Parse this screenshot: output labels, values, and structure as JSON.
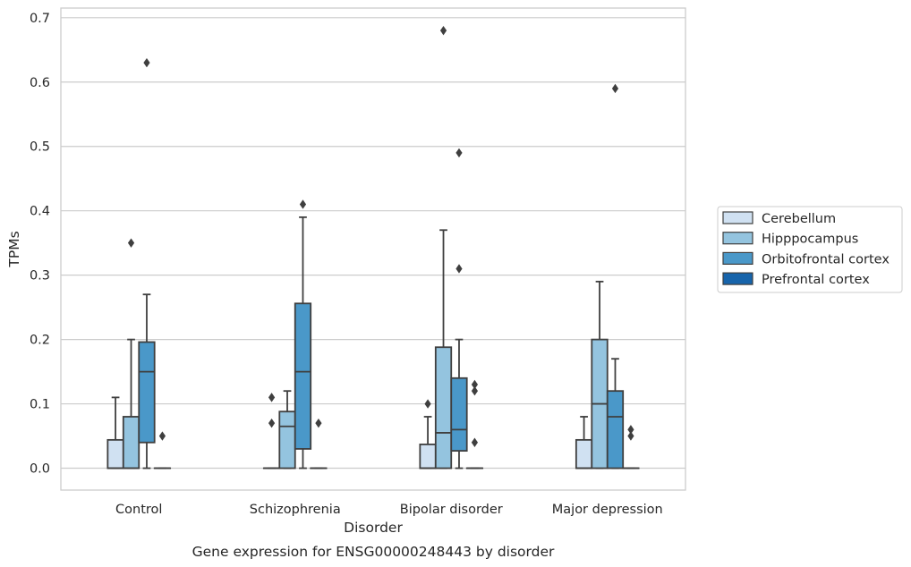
{
  "chart_data": {
    "type": "box",
    "xlabel": "Disorder",
    "ylabel": "TPMs",
    "caption": "Gene expression for ENSG00000248443 by disorder",
    "ylim": [
      -0.034,
      0.715
    ],
    "yticks": [
      0.0,
      0.1,
      0.2,
      0.3,
      0.4,
      0.5,
      0.6,
      0.7
    ],
    "ytick_labels": [
      "0.0",
      "0.1",
      "0.2",
      "0.3",
      "0.4",
      "0.5",
      "0.6",
      "0.7"
    ],
    "grid": "horizontal",
    "legend_position": "right",
    "categories": [
      "Control",
      "Schizophrenia",
      "Bipolar disorder",
      "Major depression"
    ],
    "series": [
      {
        "name": "Cerebellum",
        "color": "#d0e1f2",
        "boxes": [
          {
            "category": "Control",
            "whisker_low": 0.0,
            "q1": 0.0,
            "median": 0.0,
            "q3": 0.044,
            "whisker_high": 0.11,
            "outliers": []
          },
          {
            "category": "Schizophrenia",
            "whisker_low": 0.0,
            "q1": 0.0,
            "median": 0.0,
            "q3": 0.0,
            "whisker_high": 0.0,
            "outliers": [
              0.11,
              0.07
            ]
          },
          {
            "category": "Bipolar disorder",
            "whisker_low": 0.0,
            "q1": 0.0,
            "median": 0.0,
            "q3": 0.037,
            "whisker_high": 0.08,
            "outliers": [
              0.1
            ]
          },
          {
            "category": "Major depression",
            "whisker_low": 0.0,
            "q1": 0.0,
            "median": 0.0,
            "q3": 0.044,
            "whisker_high": 0.08,
            "outliers": []
          }
        ]
      },
      {
        "name": "Hipppocampus",
        "color": "#94c4df",
        "boxes": [
          {
            "category": "Control",
            "whisker_low": 0.0,
            "q1": 0.0,
            "median": 0.0,
            "q3": 0.08,
            "whisker_high": 0.2,
            "outliers": [
              0.35
            ]
          },
          {
            "category": "Schizophrenia",
            "whisker_low": 0.0,
            "q1": 0.0,
            "median": 0.065,
            "q3": 0.088,
            "whisker_high": 0.12,
            "outliers": []
          },
          {
            "category": "Bipolar disorder",
            "whisker_low": 0.0,
            "q1": 0.0,
            "median": 0.055,
            "q3": 0.188,
            "whisker_high": 0.37,
            "outliers": [
              0.68
            ]
          },
          {
            "category": "Major depression",
            "whisker_low": 0.0,
            "q1": 0.0,
            "median": 0.1,
            "q3": 0.2,
            "whisker_high": 0.29,
            "outliers": []
          }
        ]
      },
      {
        "name": "Orbitofrontal cortex",
        "color": "#4a98c9",
        "boxes": [
          {
            "category": "Control",
            "whisker_low": 0.0,
            "q1": 0.04,
            "median": 0.15,
            "q3": 0.196,
            "whisker_high": 0.27,
            "outliers": [
              0.63
            ]
          },
          {
            "category": "Schizophrenia",
            "whisker_low": 0.0,
            "q1": 0.03,
            "median": 0.15,
            "q3": 0.256,
            "whisker_high": 0.39,
            "outliers": [
              0.41
            ]
          },
          {
            "category": "Bipolar disorder",
            "whisker_low": 0.0,
            "q1": 0.027,
            "median": 0.06,
            "q3": 0.14,
            "whisker_high": 0.2,
            "outliers": [
              0.49,
              0.31
            ]
          },
          {
            "category": "Major depression",
            "whisker_low": 0.0,
            "q1": 0.0,
            "median": 0.08,
            "q3": 0.12,
            "whisker_high": 0.17,
            "outliers": [
              0.59
            ]
          }
        ]
      },
      {
        "name": "Prefrontal cortex",
        "color": "#1764ab",
        "boxes": [
          {
            "category": "Control",
            "whisker_low": 0.0,
            "q1": 0.0,
            "median": 0.0,
            "q3": 0.0,
            "whisker_high": 0.0,
            "outliers": [
              0.05
            ]
          },
          {
            "category": "Schizophrenia",
            "whisker_low": 0.0,
            "q1": 0.0,
            "median": 0.0,
            "q3": 0.0,
            "whisker_high": 0.0,
            "outliers": [
              0.07
            ]
          },
          {
            "category": "Bipolar disorder",
            "whisker_low": 0.0,
            "q1": 0.0,
            "median": 0.0,
            "q3": 0.0,
            "whisker_high": 0.0,
            "outliers": [
              0.13,
              0.12,
              0.04
            ]
          },
          {
            "category": "Major depression",
            "whisker_low": 0.0,
            "q1": 0.0,
            "median": 0.0,
            "q3": 0.0,
            "whisker_high": 0.0,
            "outliers": [
              0.06,
              0.05
            ]
          }
        ]
      }
    ],
    "colors": {
      "line": "#3f3f3f",
      "grid": "#cccccc",
      "frame": "#cccccc",
      "text": "#262626"
    }
  }
}
